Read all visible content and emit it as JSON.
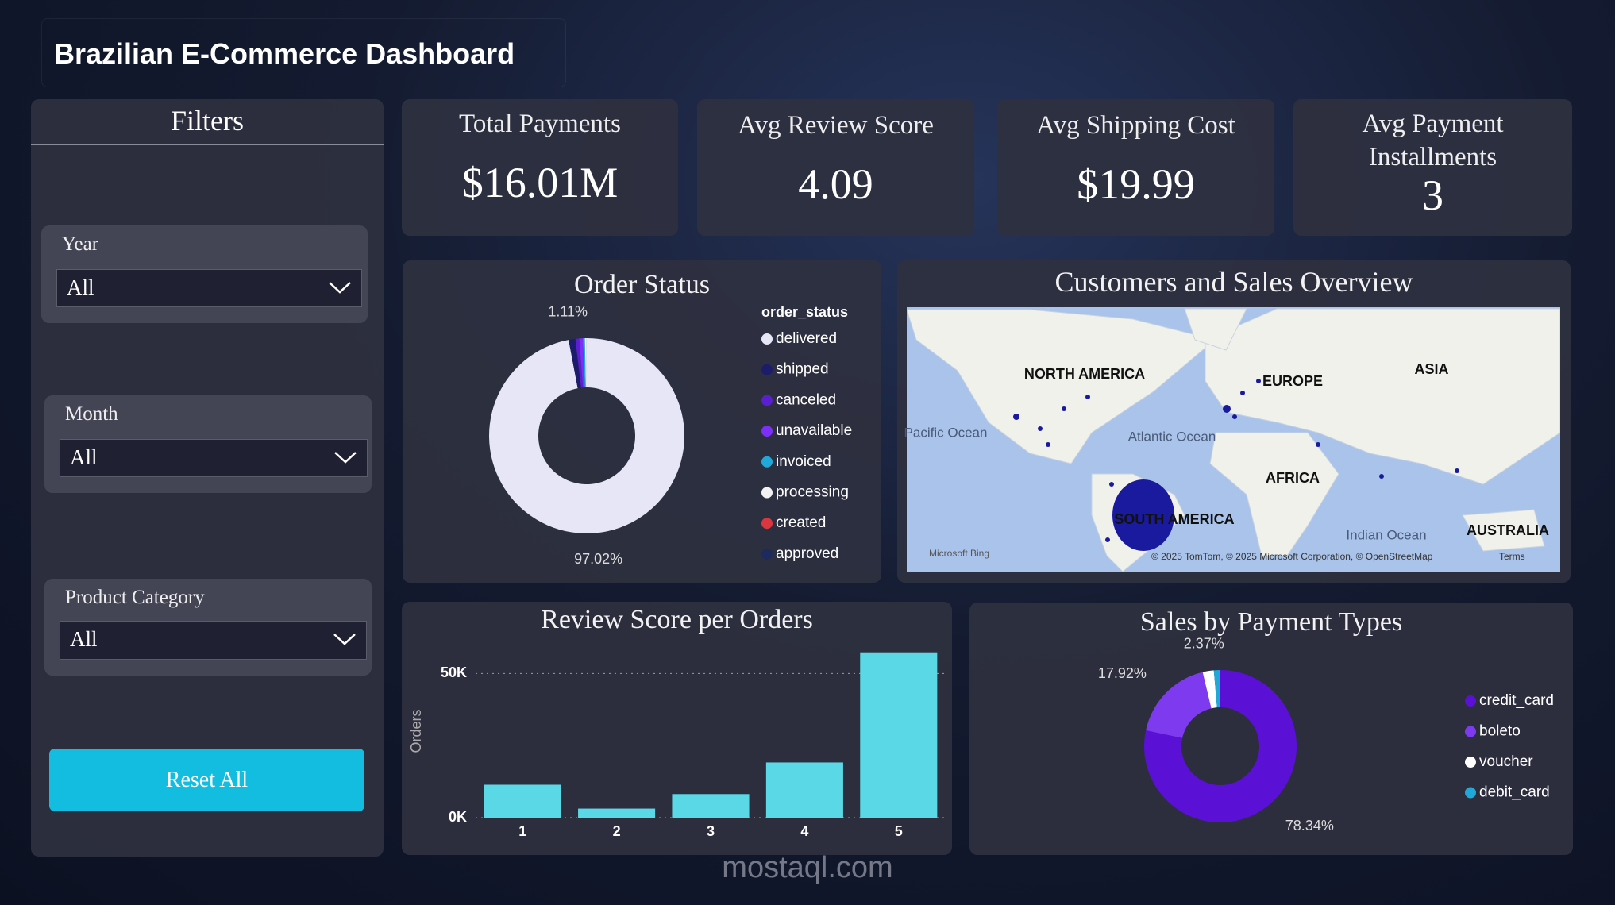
{
  "header": {
    "title": "Brazilian E-Commerce Dashboard"
  },
  "filters": {
    "title": "Filters",
    "items": [
      {
        "label": "Year",
        "value": "All"
      },
      {
        "label": "Month",
        "value": "All"
      },
      {
        "label": "Product Category",
        "value": "All"
      }
    ],
    "reset_button": "Reset All"
  },
  "kpis": [
    {
      "title": "Total Payments",
      "value": "$16.01M"
    },
    {
      "title": "Avg Review Score",
      "value": "4.09"
    },
    {
      "title": "Avg Shipping Cost",
      "value": "$19.99"
    },
    {
      "title": "Avg Payment Installments",
      "value": "3"
    }
  ],
  "map": {
    "title": "Customers and Sales Overview",
    "labels": [
      "NORTH AMERICA",
      "EUROPE",
      "ASIA",
      "AFRICA",
      "SOUTH AMERICA",
      "AUSTRALIA",
      "Pacific Ocean",
      "Atlantic Ocean",
      "Indian Ocean"
    ],
    "provider": "Microsoft Bing",
    "attribution": "© 2025 TomTom, © 2025 Microsoft Corporation, © OpenStreetMap",
    "terms": "Terms"
  },
  "chart_data": [
    {
      "type": "pie",
      "donut": true,
      "title": "Order Status",
      "legend_title": "order_status",
      "categories": [
        "delivered",
        "shipped",
        "canceled",
        "unavailable",
        "invoiced",
        "processing",
        "created",
        "approved"
      ],
      "values": [
        97.02,
        1.11,
        0.63,
        0.61,
        0.32,
        0.3,
        0.005,
        0.005
      ],
      "value_labels": [
        "97.02%",
        "1.11%",
        null,
        null,
        null,
        null,
        null,
        null
      ],
      "colors": [
        "#e6e6f6",
        "#1c1c6a",
        "#5a1fd1",
        "#7b2ff7",
        "#1fa8d8",
        "#f2f2f2",
        "#d9363e",
        "#1d2a5e"
      ]
    },
    {
      "type": "bar",
      "title": "Review Score per Orders",
      "y_label": "Orders",
      "categories": [
        "1",
        "2",
        "3",
        "4",
        "5"
      ],
      "values": [
        11424,
        3151,
        8179,
        19142,
        57328
      ],
      "color": "#5ad8e6",
      "ylim": [
        0,
        60000
      ],
      "yticks": [
        {
          "value": 0,
          "label": "0K"
        },
        {
          "value": 50000,
          "label": "50K"
        }
      ],
      "grid": true
    },
    {
      "type": "pie",
      "donut": true,
      "title": "Sales by Payment Types",
      "categories": [
        "credit_card",
        "boleto",
        "voucher",
        "debit_card"
      ],
      "values": [
        78.34,
        17.92,
        2.37,
        1.37
      ],
      "value_labels": [
        "78.34%",
        "17.92%",
        "2.37%",
        null
      ],
      "colors": [
        "#5b10d6",
        "#7d3aee",
        "#ffffff",
        "#1fa8d8"
      ]
    }
  ],
  "watermark": "mostaql.com"
}
